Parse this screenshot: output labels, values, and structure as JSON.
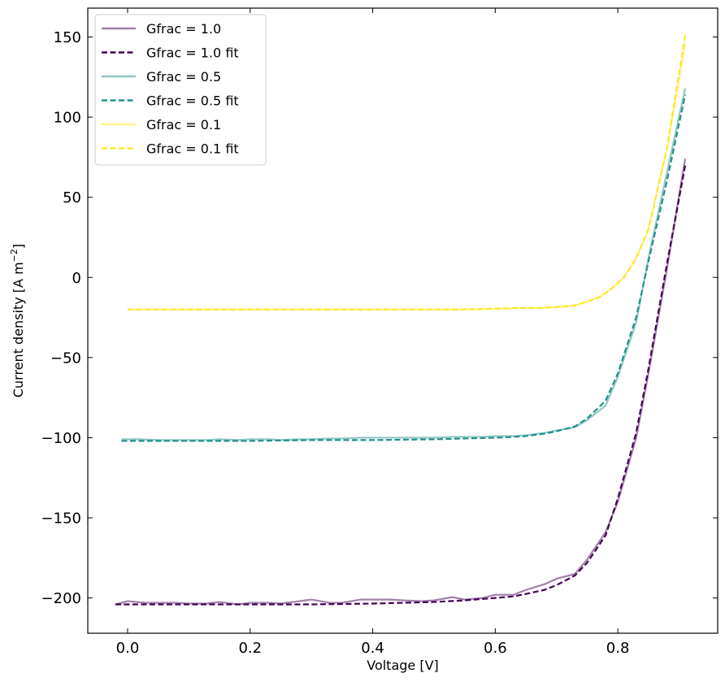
{
  "chart_data": {
    "type": "line",
    "xlabel": "Voltage [V]",
    "ylabel_main": "Current density [A m",
    "ylabel_sup": "−2",
    "ylabel_close": "]",
    "xlim": [
      -0.065,
      0.963
    ],
    "ylim": [
      -222,
      168
    ],
    "xticks": [
      0.0,
      0.2,
      0.4,
      0.6,
      0.8
    ],
    "xtick_labels": [
      "0.0",
      "0.2",
      "0.4",
      "0.6",
      "0.8"
    ],
    "yticks": [
      -200,
      -150,
      -100,
      -50,
      0,
      50,
      100,
      150
    ],
    "ytick_labels": [
      "−200",
      "−150",
      "−100",
      "−50",
      "0",
      "50",
      "100",
      "150"
    ],
    "legend_position": "top-left",
    "grid": false,
    "series": [
      {
        "name": "Gfrac = 1.0",
        "style": "solid",
        "color": "#440154",
        "opacity": 0.5,
        "x": [
          -0.02,
          0.0,
          0.03,
          0.05,
          0.08,
          0.1,
          0.13,
          0.15,
          0.18,
          0.2,
          0.23,
          0.25,
          0.28,
          0.3,
          0.33,
          0.35,
          0.38,
          0.4,
          0.43,
          0.45,
          0.48,
          0.5,
          0.53,
          0.55,
          0.58,
          0.6,
          0.63,
          0.65,
          0.68,
          0.7,
          0.73,
          0.75,
          0.78,
          0.8,
          0.83,
          0.85,
          0.88,
          0.91
        ],
        "y": [
          -204,
          -202,
          -203,
          -203,
          -203,
          -203.5,
          -203.5,
          -202.5,
          -204,
          -203,
          -203,
          -203.5,
          -202,
          -201,
          -203,
          -203,
          -201,
          -201,
          -201,
          -201.5,
          -202,
          -201.5,
          -199.5,
          -201,
          -200,
          -198,
          -198,
          -195,
          -191.5,
          -188,
          -185,
          -176,
          -159,
          -140,
          -100,
          -60,
          5,
          74
        ]
      },
      {
        "name": "Gfrac = 1.0 fit",
        "style": "dashed",
        "color": "#440154",
        "opacity": 1,
        "x": [
          -0.02,
          0.0,
          0.1,
          0.2,
          0.3,
          0.4,
          0.45,
          0.5,
          0.55,
          0.6,
          0.63,
          0.65,
          0.68,
          0.7,
          0.73,
          0.75,
          0.78,
          0.8,
          0.83,
          0.85,
          0.88,
          0.91
        ],
        "y": [
          -204,
          -204,
          -204,
          -204,
          -204,
          -203.5,
          -203,
          -202.5,
          -201.5,
          -200,
          -199,
          -197.5,
          -195,
          -192,
          -186,
          -178,
          -161,
          -138,
          -97,
          -57,
          8,
          70
        ]
      },
      {
        "name": "Gfrac = 0.5",
        "style": "solid",
        "color": "#21918c",
        "opacity": 0.5,
        "x": [
          -0.01,
          0.02,
          0.05,
          0.08,
          0.1,
          0.13,
          0.15,
          0.18,
          0.2,
          0.23,
          0.25,
          0.28,
          0.3,
          0.33,
          0.35,
          0.38,
          0.4,
          0.43,
          0.45,
          0.48,
          0.5,
          0.53,
          0.55,
          0.58,
          0.6,
          0.63,
          0.65,
          0.68,
          0.7,
          0.73,
          0.75,
          0.78,
          0.8,
          0.83,
          0.85,
          0.88,
          0.91
        ],
        "y": [
          -101,
          -101,
          -101.5,
          -101.5,
          -101.5,
          -101.5,
          -101,
          -101.5,
          -101,
          -101,
          -101.5,
          -101,
          -101,
          -100.5,
          -100.5,
          -100,
          -100,
          -100,
          -100,
          -100,
          -100,
          -99.5,
          -99.5,
          -99.5,
          -99,
          -99,
          -98.5,
          -97,
          -95.5,
          -93.5,
          -89,
          -80,
          -62,
          -28,
          12,
          65,
          118
        ]
      },
      {
        "name": "Gfrac = 0.5 fit",
        "style": "dashed",
        "color": "#21918c",
        "opacity": 1,
        "x": [
          -0.01,
          0.05,
          0.1,
          0.2,
          0.3,
          0.4,
          0.5,
          0.55,
          0.6,
          0.63,
          0.65,
          0.68,
          0.7,
          0.73,
          0.75,
          0.78,
          0.8,
          0.83,
          0.85,
          0.88,
          0.91
        ],
        "y": [
          -102,
          -102,
          -102,
          -102,
          -101.5,
          -101.5,
          -101,
          -100.5,
          -100,
          -99.5,
          -99,
          -97.5,
          -96,
          -93,
          -88,
          -77,
          -60,
          -25,
          10,
          60,
          114
        ]
      },
      {
        "name": "Gfrac = 0.1",
        "style": "solid",
        "color": "#fde725",
        "opacity": 0.55,
        "x": [
          0.0,
          0.1,
          0.2,
          0.3,
          0.4,
          0.5,
          0.55,
          0.6,
          0.65,
          0.68,
          0.7,
          0.73,
          0.75,
          0.77,
          0.79,
          0.81,
          0.83,
          0.85,
          0.88,
          0.91
        ],
        "y": [
          -20,
          -20,
          -20,
          -20,
          -20,
          -20,
          -20,
          -19.5,
          -19,
          -19,
          -18.5,
          -17.5,
          -15,
          -12,
          -7,
          0,
          12,
          30,
          80,
          146
        ]
      },
      {
        "name": "Gfrac = 0.1 fit",
        "style": "dashed",
        "color": "#fde725",
        "opacity": 1,
        "x": [
          0.0,
          0.1,
          0.2,
          0.3,
          0.4,
          0.5,
          0.55,
          0.6,
          0.65,
          0.68,
          0.7,
          0.73,
          0.75,
          0.77,
          0.79,
          0.81,
          0.83,
          0.85,
          0.88,
          0.91
        ],
        "y": [
          -20,
          -20,
          -20,
          -20,
          -20,
          -20,
          -20,
          -19.5,
          -19,
          -19,
          -18.5,
          -17.5,
          -15,
          -12.5,
          -7,
          0,
          12,
          30,
          80,
          151
        ]
      }
    ]
  }
}
